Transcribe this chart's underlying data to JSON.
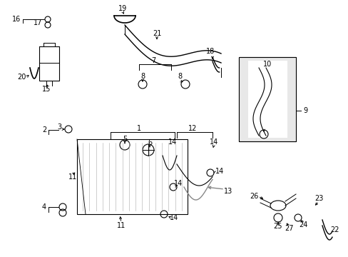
{
  "bg_color": "#ffffff",
  "line_color": "#000000",
  "gray_color": "#888888",
  "light_gray": "#cccccc",
  "fig_width": 4.89,
  "fig_height": 3.6,
  "dpi": 100,
  "lw": 0.7,
  "fontsize": 7.0
}
